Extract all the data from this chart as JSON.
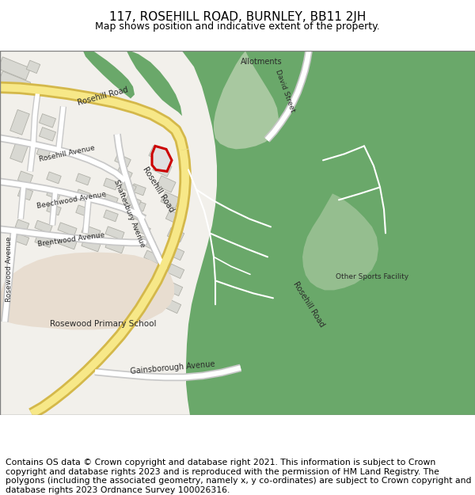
{
  "title": "117, ROSEHILL ROAD, BURNLEY, BB11 2JH",
  "subtitle": "Map shows position and indicative extent of the property.",
  "footer": "Contains OS data © Crown copyright and database right 2021. This information is subject to Crown copyright and database rights 2023 and is reproduced with the permission of HM Land Registry. The polygons (including the associated geometry, namely x, y co-ordinates) are subject to Crown copyright and database rights 2023 Ordnance Survey 100026316.",
  "title_fontsize": 11,
  "subtitle_fontsize": 9,
  "footer_fontsize": 7.8,
  "bg_color": "#f2f0eb",
  "road_color": "#ffffff",
  "road_edge_color": "#c8c8c8",
  "main_road_fill": "#f7e888",
  "main_road_edge": "#d4b84a",
  "green_dark": "#6aa86a",
  "green_light": "#a8c8a0",
  "green_mid": "#82b082",
  "school_color": "#e8ddd0",
  "red_outline": "#cc0000",
  "plot_fill": "#e0e0e0",
  "building_fill": "#d8d8d2",
  "building_edge": "#b0b0a8"
}
